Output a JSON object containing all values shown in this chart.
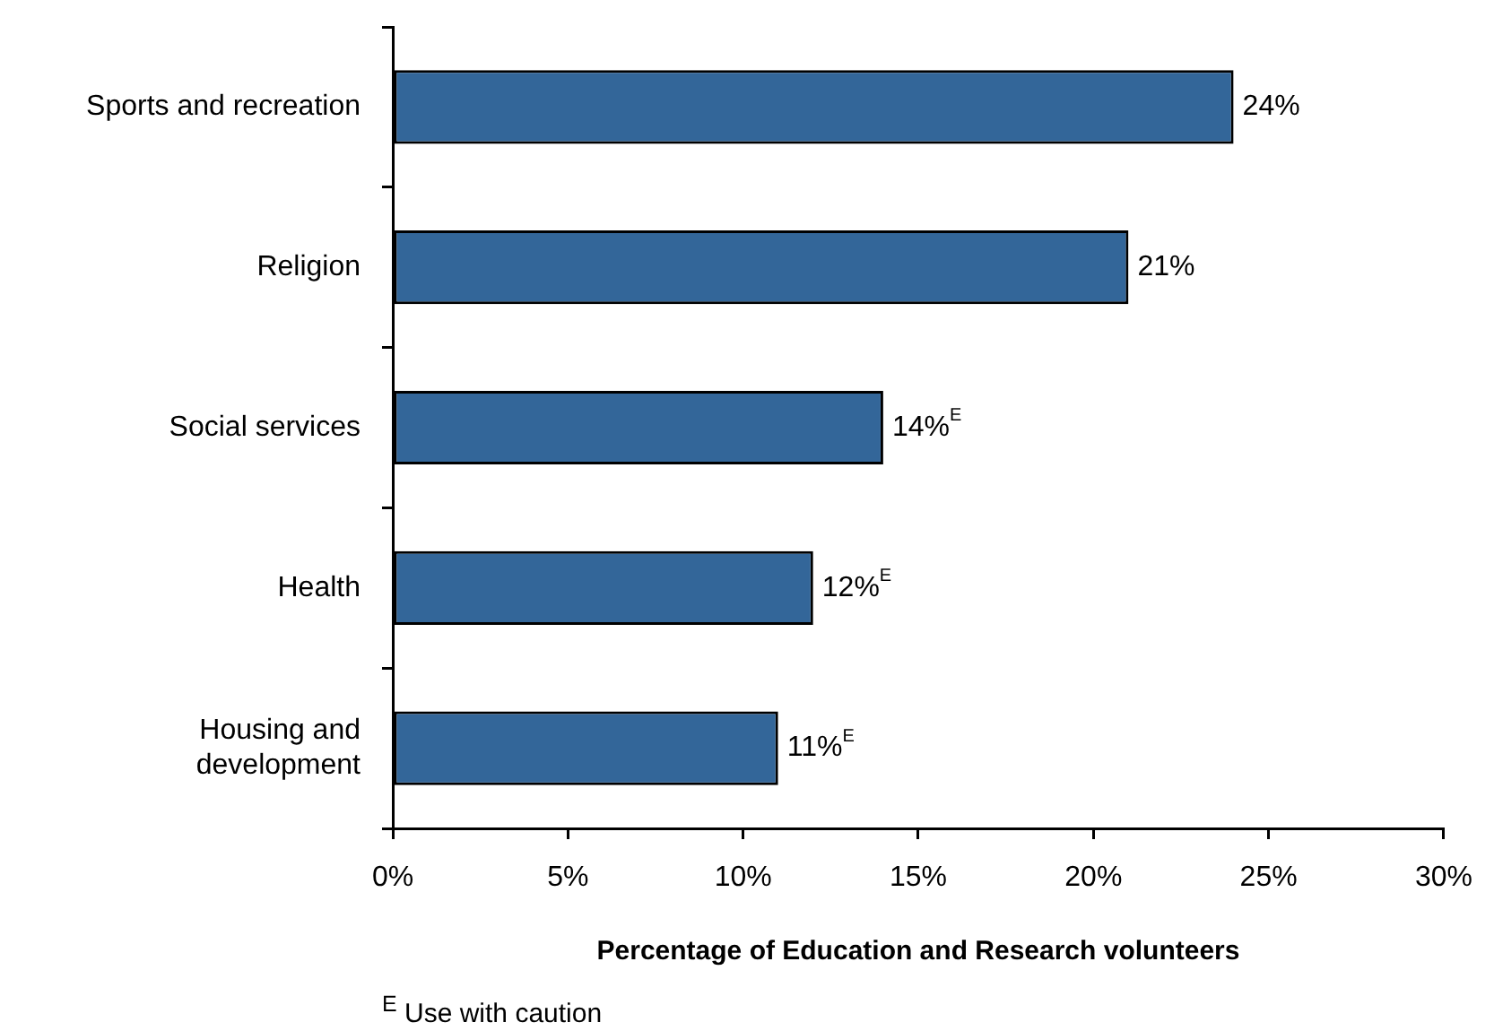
{
  "chart_data": {
    "type": "bar",
    "orientation": "horizontal",
    "categories": [
      "Sports and recreation",
      "Religion",
      "Social services",
      "Health",
      "Housing and development"
    ],
    "values": [
      24,
      21,
      14,
      12,
      11
    ],
    "color": "#336699",
    "value_labels": [
      "24%",
      "21%",
      "14%$^{E}$",
      "12%$^{E}$",
      "11%$^{E}$"
    ],
    "xlabel": "Percentage of Education and Research volunteers",
    "xlim": [
      0,
      30
    ],
    "xticks": [
      {
        "value": 0,
        "label": "0%"
      },
      {
        "value": 5,
        "label": "5%"
      },
      {
        "value": 10,
        "label": "10%"
      },
      {
        "value": 15,
        "label": "15%"
      },
      {
        "value": 20,
        "label": "20%"
      },
      {
        "value": 25,
        "label": "25%"
      },
      {
        "value": 30,
        "label": "30%"
      }
    ],
    "annotations": [
      "$^{E}$ Use with caution"
    ]
  }
}
